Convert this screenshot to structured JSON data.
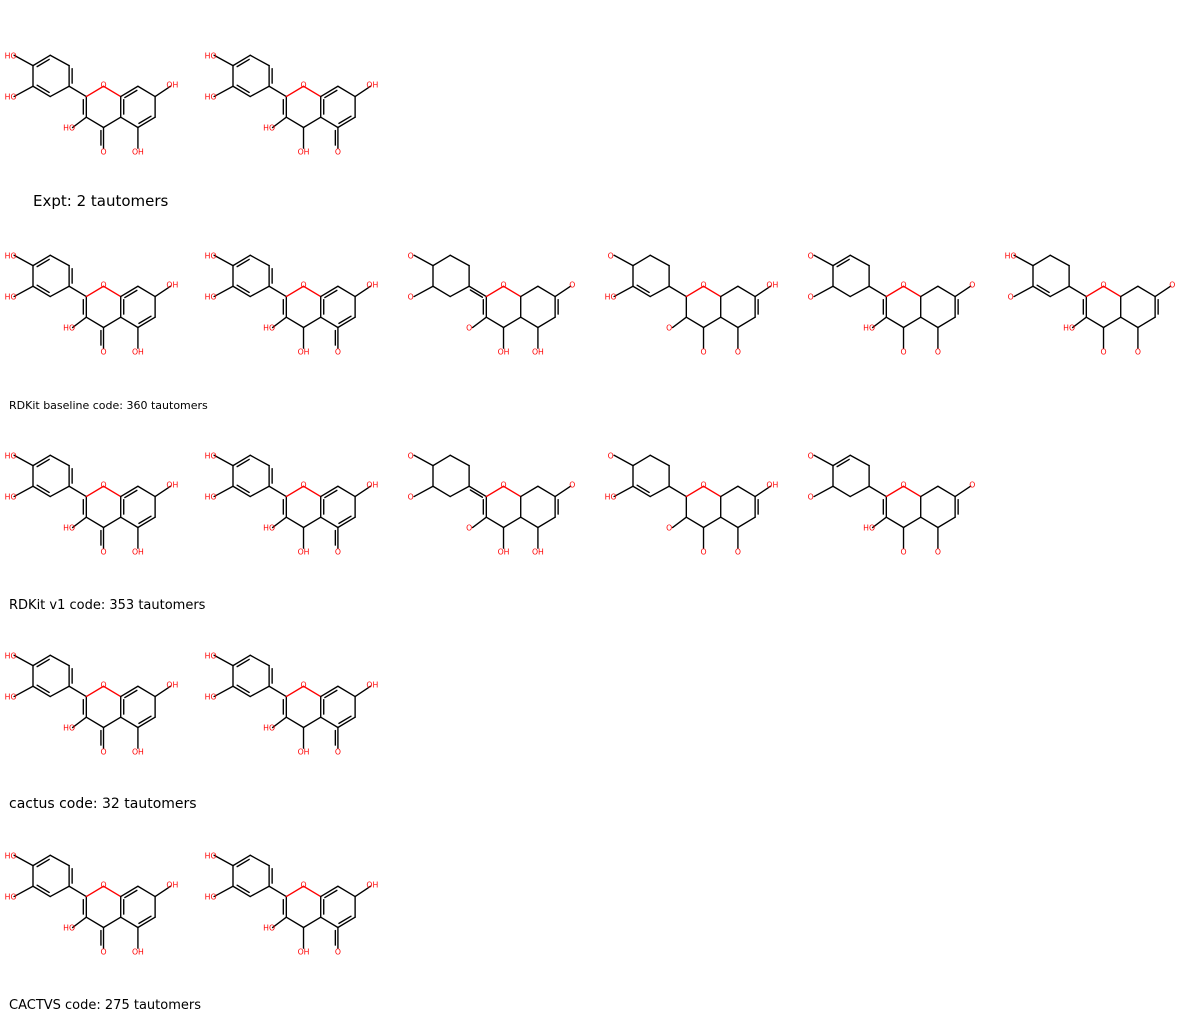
{
  "colors": {
    "bond": "#000000",
    "heteroatom": "#ff0000"
  },
  "rows": [
    {
      "caption": "Expt: 2 tautomers",
      "caption_style": "big",
      "molecules": [
        {
          "variant": "keto-OH5",
          "labels": {
            "a": "HO",
            "b": "HO",
            "c": "HO",
            "d": "O",
            "e": "OH",
            "f": "OH",
            "g": "O"
          }
        },
        {
          "variant": "enol-OH4",
          "labels": {
            "a": "HO",
            "b": "HO",
            "c": "HO",
            "d": "OH",
            "e": "O",
            "f": "OH",
            "g": "O"
          }
        }
      ]
    },
    {
      "caption": "RDKit baseline code: 360 tautomers",
      "caption_style": "small",
      "molecules": [
        {
          "variant": "keto-OH5",
          "labels": {
            "a": "HO",
            "b": "HO",
            "c": "HO",
            "d": "O",
            "e": "OH",
            "f": "OH",
            "g": "O"
          }
        },
        {
          "variant": "enol-OH4",
          "labels": {
            "a": "HO",
            "b": "HO",
            "c": "HO",
            "d": "OH",
            "e": "O",
            "f": "OH",
            "g": "O"
          }
        },
        {
          "variant": "diketo-ring",
          "labels": {
            "a": "O",
            "b": "O",
            "c": "O",
            "d": "OH",
            "e": "OH",
            "f": "O",
            "g": "O"
          }
        },
        {
          "variant": "sat-ring",
          "labels": {
            "a": "O",
            "b": "HO",
            "c": "O",
            "d": "O",
            "e": "O",
            "f": "OH",
            "g": "O"
          }
        },
        {
          "variant": "diketo-B",
          "labels": {
            "a": "O",
            "b": "O",
            "c": "HO",
            "d": "O",
            "e": "O",
            "f": "O",
            "g": "O"
          }
        },
        {
          "variant": "diketo-B2",
          "labels": {
            "a": "HO",
            "b": "O",
            "c": "HO",
            "d": "O",
            "e": "O",
            "f": "O",
            "g": "O"
          }
        }
      ]
    },
    {
      "caption": "RDKit v1 code: 353 tautomers",
      "caption_style": "medium2",
      "molecules": [
        {
          "variant": "keto-OH5",
          "labels": {
            "a": "HO",
            "b": "HO",
            "c": "HO",
            "d": "O",
            "e": "OH",
            "f": "OH",
            "g": "O"
          }
        },
        {
          "variant": "enol-OH4",
          "labels": {
            "a": "HO",
            "b": "HO",
            "c": "HO",
            "d": "OH",
            "e": "O",
            "f": "OH",
            "g": "O"
          }
        },
        {
          "variant": "diketo-ring",
          "labels": {
            "a": "O",
            "b": "O",
            "c": "O",
            "d": "OH",
            "e": "OH",
            "f": "O",
            "g": "O"
          }
        },
        {
          "variant": "sat-ring",
          "labels": {
            "a": "O",
            "b": "HO",
            "c": "O",
            "d": "O",
            "e": "O",
            "f": "OH",
            "g": "O"
          }
        },
        {
          "variant": "diketo-B",
          "labels": {
            "a": "O",
            "b": "O",
            "c": "HO",
            "d": "O",
            "e": "O",
            "f": "O",
            "g": "O"
          }
        }
      ]
    },
    {
      "caption": "cactus code: 32 tautomers",
      "caption_style": "medium",
      "molecules": [
        {
          "variant": "keto-OH5",
          "labels": {
            "a": "HO",
            "b": "HO",
            "c": "HO",
            "d": "O",
            "e": "OH",
            "f": "OH",
            "g": "O"
          }
        },
        {
          "variant": "enol-OH4",
          "labels": {
            "a": "HO",
            "b": "HO",
            "c": "HO",
            "d": "OH",
            "e": "O",
            "f": "OH",
            "g": "O"
          }
        }
      ]
    },
    {
      "caption": "CACTVS code: 275 tautomers",
      "caption_style": "medium2",
      "molecules": [
        {
          "variant": "keto-OH5",
          "labels": {
            "a": "HO",
            "b": "HO",
            "c": "HO",
            "d": "O",
            "e": "OH",
            "f": "OH",
            "g": "O"
          }
        },
        {
          "variant": "enol-OH4",
          "labels": {
            "a": "HO",
            "b": "HO",
            "c": "HO",
            "d": "OH",
            "e": "O",
            "f": "OH",
            "g": "O"
          }
        }
      ]
    }
  ]
}
